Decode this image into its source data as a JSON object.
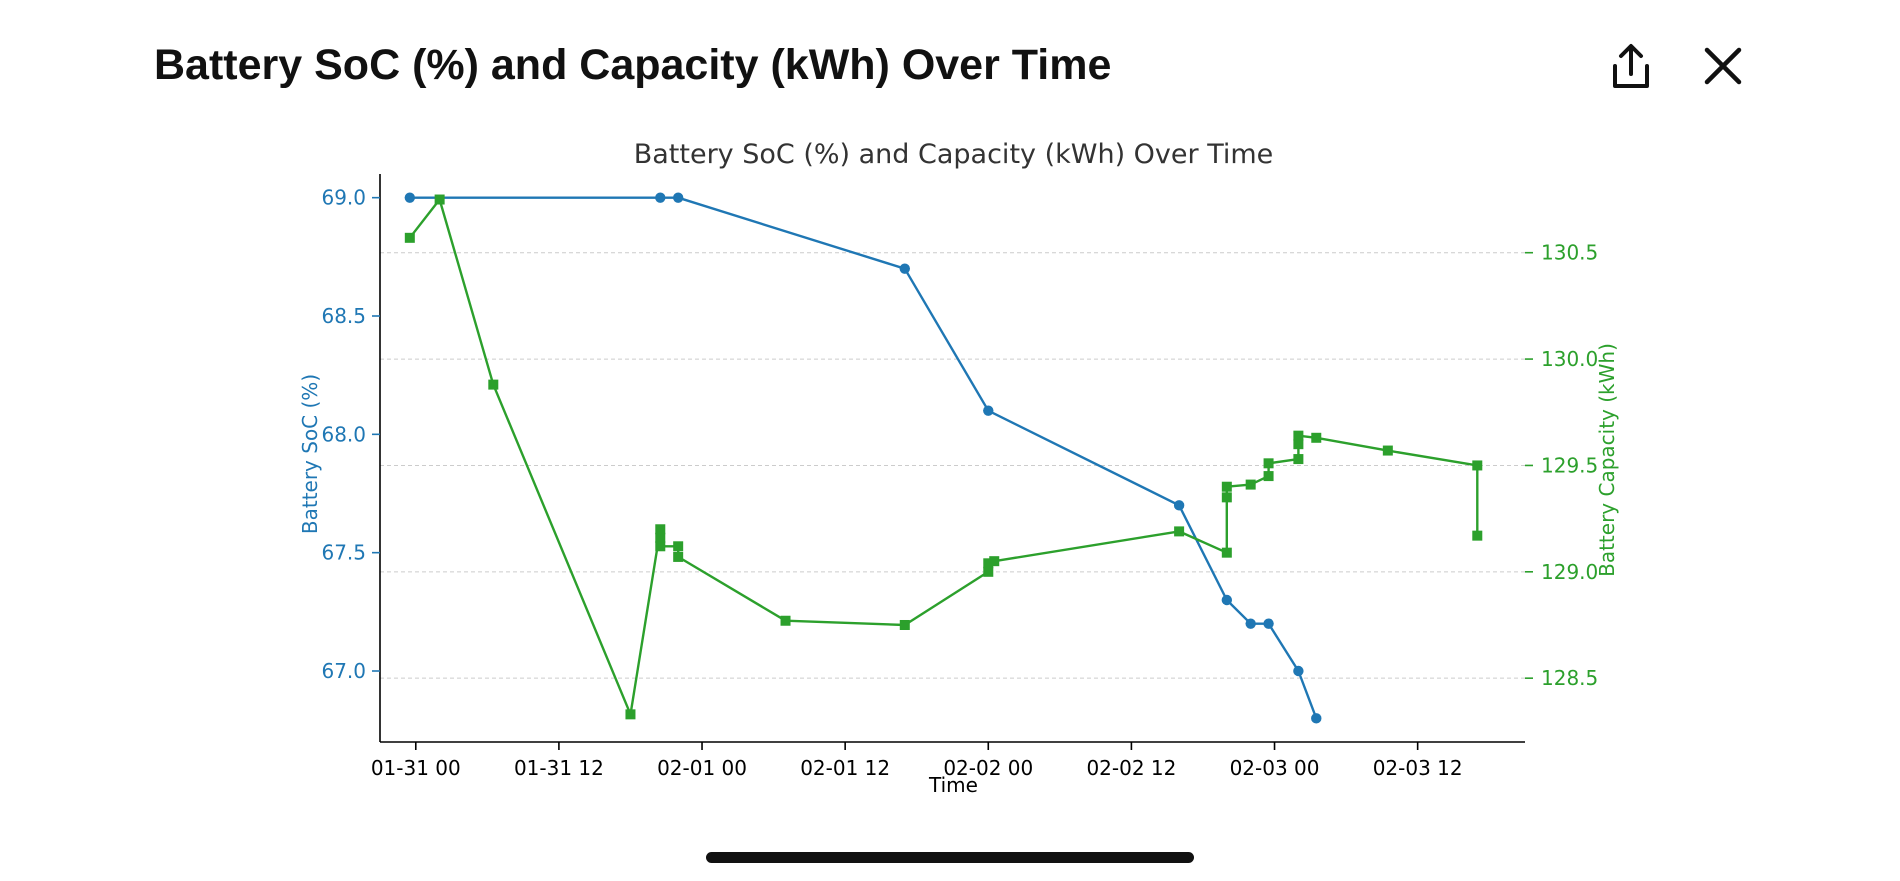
{
  "header": {
    "title": "Battery SoC (%) and Capacity (kWh) Over Time",
    "share_icon": "share-upload-icon",
    "close_icon": "close-x-icon"
  },
  "colors": {
    "soc": "#1f77b4",
    "capacity": "#2ca02c",
    "grid": "#cccccc",
    "axis": "#000000"
  },
  "chart_data": {
    "type": "line",
    "title": "Battery SoC (%) and Capacity (kWh) Over Time",
    "xlabel": "Time",
    "ylabel": "Battery SoC (%)",
    "y2label": "Battery Capacity (kWh)",
    "x_ticks": [
      "01-31 00",
      "01-31 12",
      "02-01 00",
      "02-01 12",
      "02-02 00",
      "02-02 12",
      "02-03 00",
      "02-03 12"
    ],
    "y_ticks": [
      "67.0",
      "67.5",
      "68.0",
      "68.5",
      "69.0"
    ],
    "y2_ticks": [
      "128.5",
      "129.0",
      "129.5",
      "130.0",
      "130.5"
    ],
    "xlim": [
      "01-30 21:00",
      "02-03 21:00"
    ],
    "ylim": [
      66.7,
      69.1
    ],
    "y2lim": [
      128.2,
      130.87
    ],
    "grid": "horizontal dashed, right axis",
    "legend": "none",
    "series": [
      {
        "axis": "left",
        "marker": "circle",
        "color": "#1f77b4",
        "points": [
          {
            "t": "01-30 23:30",
            "v": 69.0
          },
          {
            "t": "01-31 20:30",
            "v": 69.0
          },
          {
            "t": "01-31 22:00",
            "v": 69.0
          },
          {
            "t": "02-01 17:00",
            "v": 68.7
          },
          {
            "t": "02-02 00:00",
            "v": 68.1
          },
          {
            "t": "02-02 16:00",
            "v": 67.7
          },
          {
            "t": "02-02 20:00",
            "v": 67.3
          },
          {
            "t": "02-02 22:00",
            "v": 67.2
          },
          {
            "t": "02-02 23:30",
            "v": 67.2
          },
          {
            "t": "02-03 02:00",
            "v": 67.0
          },
          {
            "t": "02-03 03:30",
            "v": 66.8
          }
        ]
      },
      {
        "axis": "right",
        "marker": "square",
        "color": "#2ca02c",
        "points": [
          {
            "t": "01-30 23:30",
            "v": 130.57
          },
          {
            "t": "01-31 02:00",
            "v": 130.75
          },
          {
            "t": "01-31 06:30",
            "v": 129.88
          },
          {
            "t": "01-31 18:00",
            "v": 128.33
          },
          {
            "t": "01-31 20:30",
            "v": 129.2
          },
          {
            "t": "01-31 20:30",
            "v": 129.16
          },
          {
            "t": "01-31 20:30",
            "v": 129.12
          },
          {
            "t": "01-31 22:00",
            "v": 129.12
          },
          {
            "t": "01-31 22:00",
            "v": 129.07
          },
          {
            "t": "02-01 07:00",
            "v": 128.77
          },
          {
            "t": "02-01 17:00",
            "v": 128.75
          },
          {
            "t": "02-02 00:00",
            "v": 129.0
          },
          {
            "t": "02-02 00:00",
            "v": 129.04
          },
          {
            "t": "02-02 00:30",
            "v": 129.05
          },
          {
            "t": "02-02 16:00",
            "v": 129.19
          },
          {
            "t": "02-02 20:00",
            "v": 129.09
          },
          {
            "t": "02-02 20:00",
            "v": 129.35
          },
          {
            "t": "02-02 20:00",
            "v": 129.4
          },
          {
            "t": "02-02 22:00",
            "v": 129.41
          },
          {
            "t": "02-02 23:30",
            "v": 129.45
          },
          {
            "t": "02-02 23:30",
            "v": 129.51
          },
          {
            "t": "02-03 02:00",
            "v": 129.53
          },
          {
            "t": "02-03 02:00",
            "v": 129.6
          },
          {
            "t": "02-03 02:00",
            "v": 129.64
          },
          {
            "t": "02-03 03:30",
            "v": 129.63
          },
          {
            "t": "02-03 09:30",
            "v": 129.57
          },
          {
            "t": "02-03 17:00",
            "v": 129.5
          },
          {
            "t": "02-03 17:00",
            "v": 129.17
          }
        ]
      }
    ]
  }
}
